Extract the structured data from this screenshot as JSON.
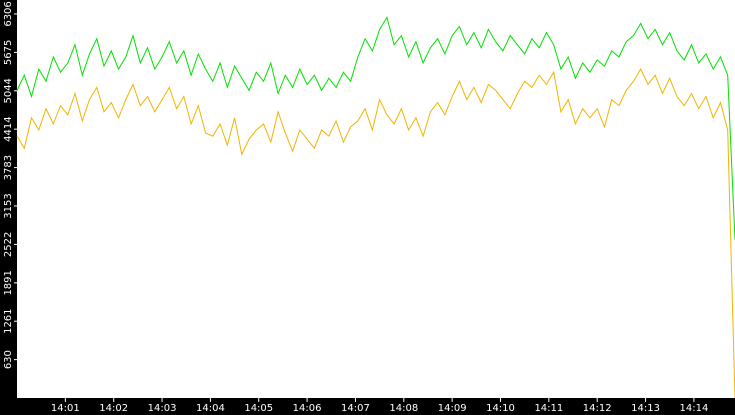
{
  "chart_data": {
    "type": "line",
    "x": [
      0,
      0.15,
      0.3,
      0.45,
      0.6,
      0.75,
      0.9,
      1.05,
      1.2,
      1.35,
      1.5,
      1.65,
      1.8,
      1.95,
      2.1,
      2.25,
      2.4,
      2.55,
      2.7,
      2.85,
      3,
      3.15,
      3.3,
      3.45,
      3.6,
      3.75,
      3.9,
      4.05,
      4.2,
      4.35,
      4.5,
      4.65,
      4.8,
      4.95,
      5.1,
      5.25,
      5.4,
      5.55,
      5.7,
      5.85,
      6,
      6.15,
      6.3,
      6.45,
      6.6,
      6.75,
      6.9,
      7.05,
      7.2,
      7.35,
      7.5,
      7.65,
      7.8,
      7.95,
      8.1,
      8.25,
      8.4,
      8.55,
      8.7,
      8.85,
      9,
      9.15,
      9.3,
      9.45,
      9.6,
      9.75,
      9.9,
      10.05,
      10.2,
      10.35,
      10.5,
      10.65,
      10.8,
      10.95,
      11.1,
      11.25,
      11.4,
      11.55,
      11.7,
      11.85,
      12,
      12.15,
      12.3,
      12.45,
      12.6,
      12.75,
      12.9,
      13.05,
      13.2,
      13.35,
      13.5,
      13.65,
      13.8,
      13.95,
      14.1,
      14.25,
      14.4,
      14.55,
      14.7,
      14.85
    ],
    "series": [
      {
        "color": "#00e000",
        "values": [
          5050,
          5300,
          4950,
          5400,
          5200,
          5600,
          5350,
          5500,
          5800,
          5300,
          5650,
          5900,
          5450,
          5700,
          5400,
          5600,
          5950,
          5500,
          5750,
          5400,
          5600,
          5850,
          5500,
          5700,
          5300,
          5650,
          5400,
          5200,
          5500,
          5100,
          5450,
          5250,
          5050,
          5350,
          5200,
          5500,
          5000,
          5300,
          5100,
          5400,
          5150,
          5300,
          5050,
          5250,
          5100,
          5350,
          5200,
          5600,
          5900,
          5700,
          6050,
          6250,
          5800,
          5950,
          5600,
          5850,
          5500,
          5750,
          5900,
          5650,
          5950,
          6100,
          5800,
          6000,
          5750,
          6050,
          5850,
          5700,
          5950,
          5800,
          5650,
          5900,
          5750,
          6000,
          5800,
          5400,
          5600,
          5250,
          5500,
          5350,
          5550,
          5450,
          5700,
          5600,
          5850,
          5950,
          6150,
          5900,
          6050,
          5800,
          6000,
          5700,
          5550,
          5800,
          5500,
          5650,
          5400,
          5600,
          5300,
          2600
        ]
      },
      {
        "color": "#f0b400",
        "values": [
          4300,
          4100,
          4600,
          4400,
          4750,
          4500,
          4800,
          4650,
          5000,
          4550,
          4900,
          5100,
          4700,
          4850,
          4600,
          4900,
          5150,
          4800,
          4950,
          4700,
          4900,
          5100,
          4750,
          4950,
          4500,
          4800,
          4350,
          4300,
          4500,
          4150,
          4600,
          4000,
          4250,
          4400,
          4500,
          4200,
          4700,
          4350,
          4050,
          4400,
          4250,
          4100,
          4400,
          4300,
          4550,
          4200,
          4450,
          4550,
          4750,
          4400,
          4900,
          4650,
          4500,
          4750,
          4400,
          4600,
          4300,
          4700,
          4850,
          4650,
          4950,
          5200,
          4900,
          5100,
          4850,
          5150,
          5050,
          4900,
          4750,
          5000,
          5200,
          5100,
          5300,
          5150,
          5350,
          4700,
          4900,
          4500,
          4750,
          4600,
          4750,
          4450,
          4900,
          4800,
          5050,
          5200,
          5400,
          5150,
          5300,
          5000,
          5250,
          4950,
          4800,
          5000,
          4750,
          4950,
          4600,
          4850,
          4400,
          0
        ]
      }
    ],
    "xlim": [
      0,
      14.85
    ],
    "xticks": [
      {
        "value": 1,
        "label": "14:01"
      },
      {
        "value": 2,
        "label": "14:02"
      },
      {
        "value": 3,
        "label": "14:03"
      },
      {
        "value": 4,
        "label": "14:04"
      },
      {
        "value": 5,
        "label": "14:05"
      },
      {
        "value": 6,
        "label": "14:06"
      },
      {
        "value": 7,
        "label": "14:07"
      },
      {
        "value": 8,
        "label": "14:08"
      },
      {
        "value": 9,
        "label": "14:09"
      },
      {
        "value": 10,
        "label": "14:10"
      },
      {
        "value": 11,
        "label": "14:11"
      },
      {
        "value": 12,
        "label": "14:12"
      },
      {
        "value": 13,
        "label": "14:13"
      },
      {
        "value": 14,
        "label": "14:14"
      }
    ],
    "ylim": [
      0,
      6535
    ],
    "yticks": [
      630,
      1261,
      1891,
      2522,
      3153,
      3783,
      4414,
      5044,
      5675,
      6306
    ]
  }
}
